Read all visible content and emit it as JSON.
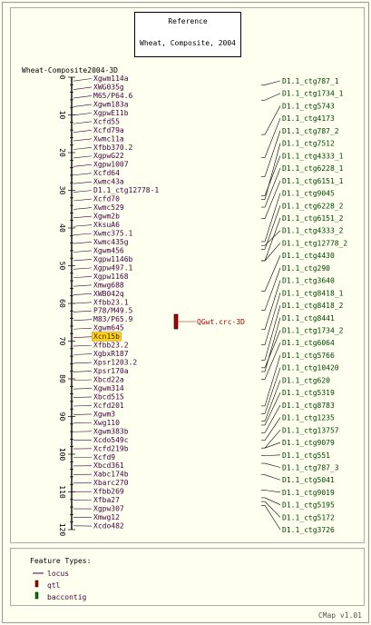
{
  "reference": {
    "title": "Reference",
    "subtitle": "Wheat, Composite, 2004"
  },
  "map_label": "Wheat-Composite2004-3D",
  "ruler": {
    "min": 0,
    "max": 120,
    "ticks": [
      0,
      10,
      20,
      30,
      40,
      50,
      60,
      70,
      80,
      90,
      100,
      110,
      120
    ]
  },
  "loci": [
    "Xgwm114a",
    "XWG035g",
    "M65/P64.6",
    "Xgwm183a",
    "XgpwE11b",
    "Xcfd55",
    "Xcfd79a",
    "Xwmc11a",
    "Xfbb370.2",
    "XgpwG22",
    "Xgpw1007",
    "Xcfd64",
    "Xwmc43a",
    "D1.1_ctg12778-1",
    "Xcfd70",
    "Xwmc529",
    "Xgwm2b",
    "XksuA6",
    "Xwmc375.1",
    "Xwmc435g",
    "Xgwm456",
    "Xgpw1146b",
    "Xgpw497.1",
    "Xgpw1168",
    "Xmwg688",
    "XWB042q",
    "Xfbb23.1",
    "P78/M49.5",
    "M83/P65.9",
    "Xgwm645",
    "Xcn15b",
    "Xfbb23.2",
    "XgbxR187",
    "Xpsr1203.2",
    "Xpsr170a",
    "Xbcd22a",
    "Xgwm314",
    "Xbcd515",
    "Xcfd201",
    "Xgwm3",
    "Xwg110",
    "Xgwm383b",
    "Xcdo549c",
    "Xcfd219b",
    "Xcfd9",
    "Xbcd361",
    "Xabc174b",
    "Xbarc270",
    "Xfbb269",
    "Xfba27",
    "Xgpw307",
    "Xmwg12",
    "Xcdo482"
  ],
  "highlighted_locus": "Xcn15b",
  "qtl": {
    "label": "QGwt.crc-3D"
  },
  "contigs": [
    "D1.1_ctg787_1",
    "D1.1_ctg1734_1",
    "D1.1_ctg5743",
    "D1.1_ctg4173",
    "D1.1_ctg787_2",
    "D1.1_ctg7512",
    "D1.1_ctg4333_1",
    "D1.1_ctg6228_1",
    "D1.1_ctg6151_1",
    "D1.1_ctg9045",
    "D1.1_ctg6228_2",
    "D1.1_ctg6151_2",
    "D1.1_ctg4333_2",
    "D1.1_ctg12778_2",
    "D1.1_ctg4430",
    "D1.1_ctg290",
    "D1.1_ctg3640",
    "D1.1_ctg8418_1",
    "D1.1_ctg8418_2",
    "D1.1_ctg8441",
    "D1.1_ctg1734_2",
    "D1.1_ctg6064",
    "D1.1_ctg5766",
    "D1.1_ctg10420",
    "D1.1_ctg620",
    "D1.1_ctg5319",
    "D1.1_ctg8783",
    "D1.1_ctg1235",
    "D1.1_ctg13757",
    "D1.1_ctg9079",
    "D1.1_ctg551",
    "D1.1_ctg787_3",
    "D1.1_ctg5041",
    "D1.1_ctg9019",
    "D1.1_ctg5195",
    "D1.1_ctg5172",
    "D1.1_ctg3726"
  ],
  "contig_positions_cM": [
    2,
    6,
    15,
    21,
    26,
    32,
    31,
    34,
    37,
    43,
    45,
    48,
    44,
    48,
    56,
    61,
    66,
    70,
    74,
    77,
    76,
    79,
    86,
    88,
    90,
    91,
    93,
    95,
    97,
    97,
    99,
    101,
    104,
    108,
    110,
    111,
    112
  ],
  "legend": {
    "title": "Feature Types:",
    "locus": "locus",
    "qtl": "qtl",
    "contig": "baccontig"
  },
  "footer": "CMap v1.01",
  "colors": {
    "locus": "#400040",
    "qtl_fill": "#aa0000",
    "contig_text": "#004400",
    "highlight": "#ffdd00"
  }
}
